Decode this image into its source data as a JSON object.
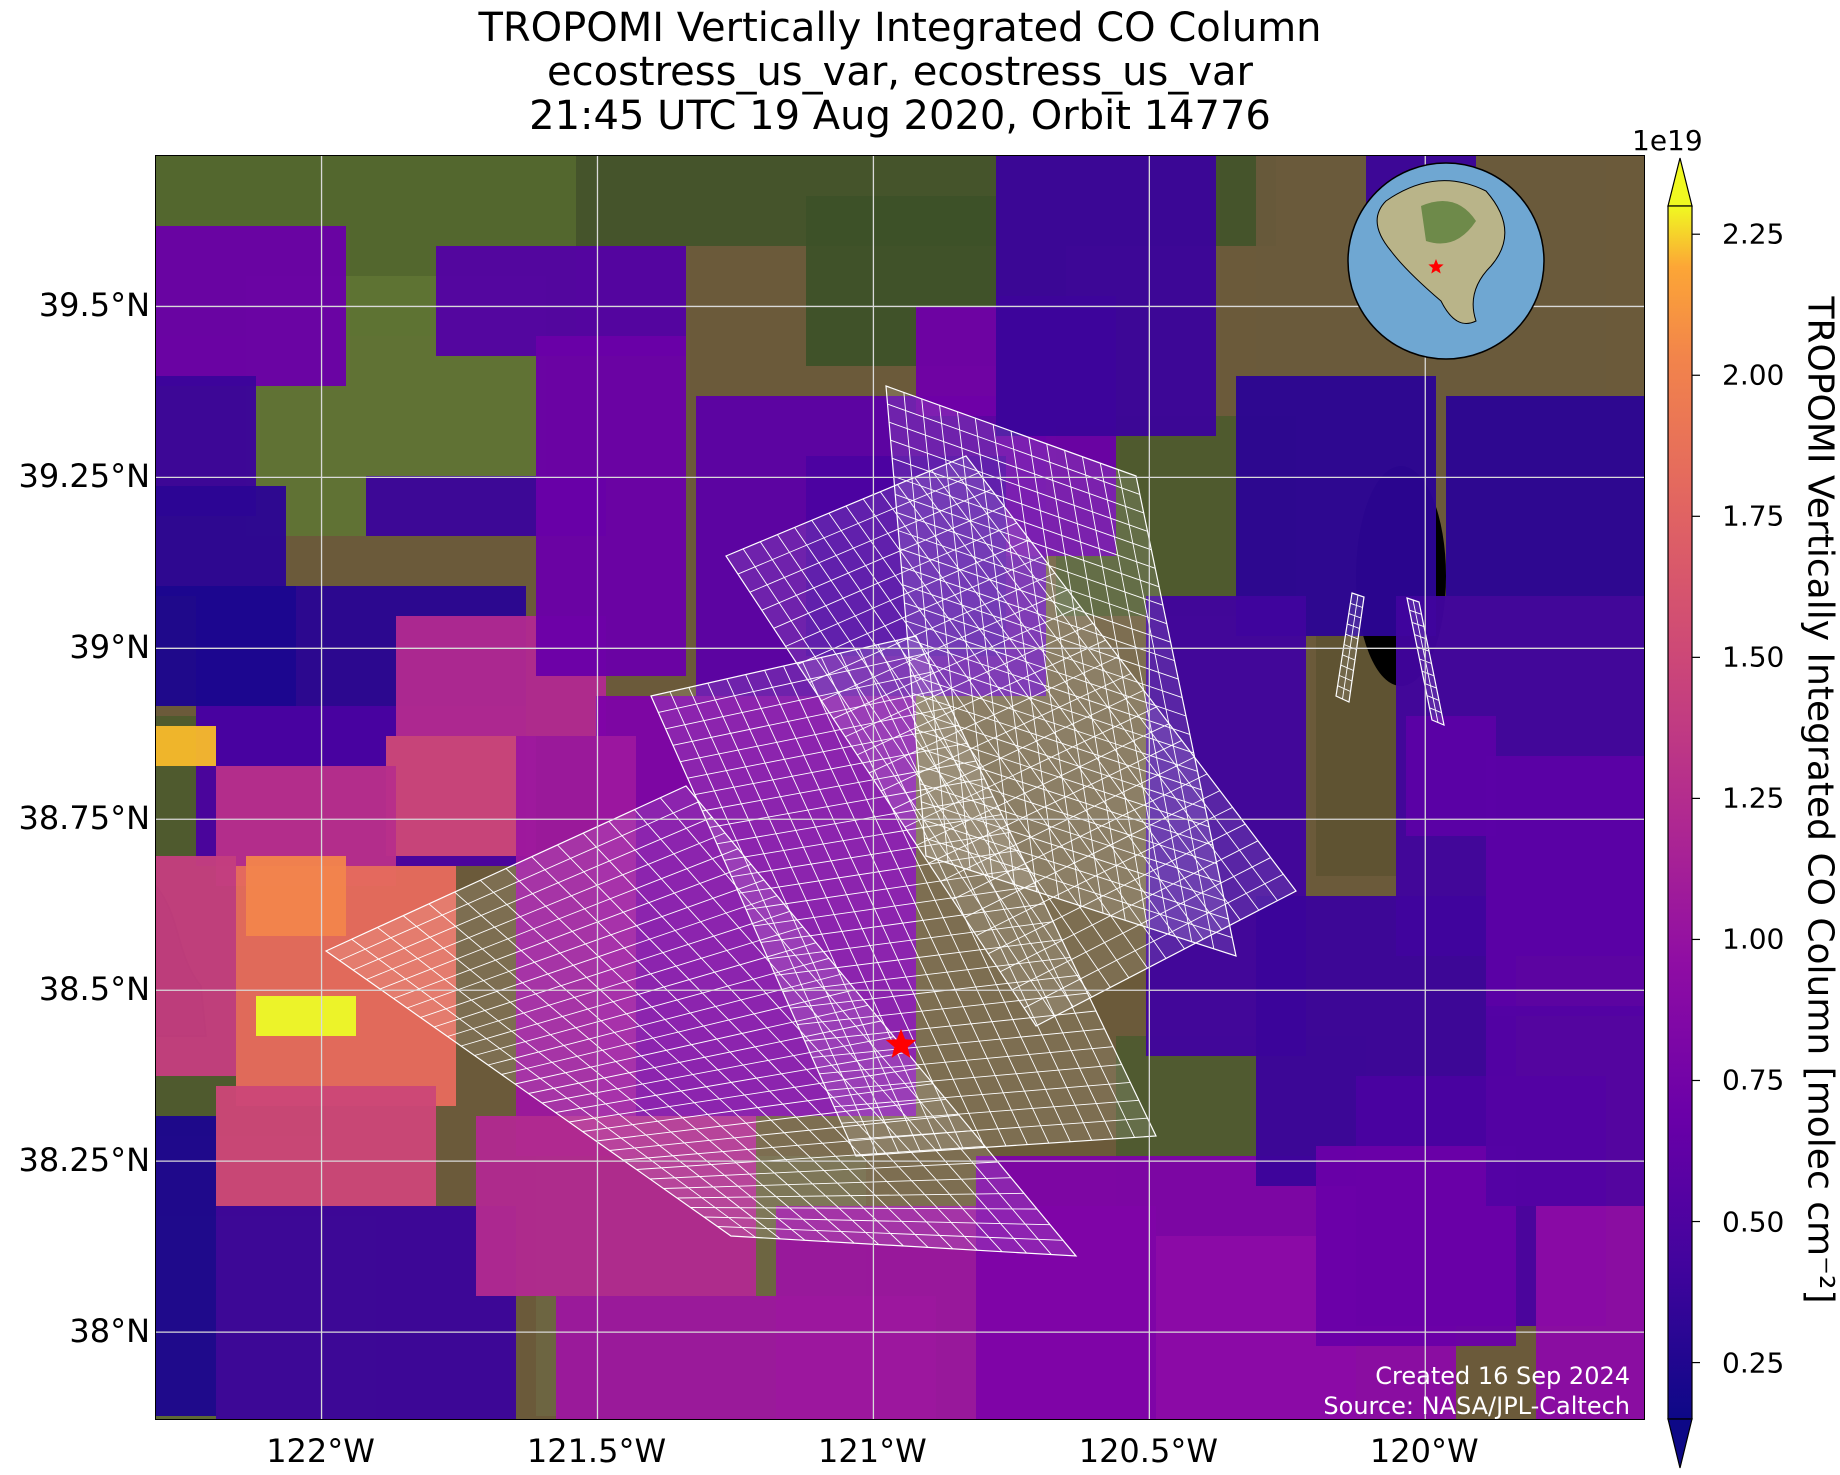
{
  "title": {
    "line1": "TROPOMI Vertically Integrated CO Column",
    "line2": "ecostress_us_var, ecostress_us_var",
    "line3": "21:45 UTC 19 Aug 2020, Orbit 14776"
  },
  "map": {
    "lon_range": [
      -122.3,
      -119.6
    ],
    "lat_range": [
      37.87,
      39.72
    ],
    "lat_ticks": [
      {
        "value": 39.5,
        "label": "39.5°N"
      },
      {
        "value": 39.25,
        "label": "39.25°N"
      },
      {
        "value": 39.0,
        "label": "39°N"
      },
      {
        "value": 38.75,
        "label": "38.75°N"
      },
      {
        "value": 38.5,
        "label": "38.5°N"
      },
      {
        "value": 38.25,
        "label": "38.25°N"
      },
      {
        "value": 38.0,
        "label": "38°N"
      }
    ],
    "lon_ticks": [
      {
        "value": -122.0,
        "label": "122°W"
      },
      {
        "value": -121.5,
        "label": "121.5°W"
      },
      {
        "value": -121.0,
        "label": "121°W"
      },
      {
        "value": -120.5,
        "label": "120.5°W"
      },
      {
        "value": -120.0,
        "label": "120°W"
      }
    ],
    "marker": {
      "lon": -120.95,
      "lat": 38.42,
      "symbol": "star",
      "color": "#ff0000"
    },
    "grid": true,
    "inset_globe": {
      "position": "top-right",
      "marker": "star"
    }
  },
  "colorbar": {
    "label": "TROPOMI Vertically Integrated CO Column [molec cm⁻²]",
    "exponent": "1e19",
    "range": [
      0.15,
      2.3
    ],
    "colormap": "plasma",
    "ticks": [
      "0.25",
      "0.50",
      "0.75",
      "1.00",
      "1.25",
      "1.50",
      "1.75",
      "2.00",
      "2.25"
    ],
    "extend": "both"
  },
  "credits": {
    "created": "Created 16 Sep 2024",
    "source": "Source: NASA/JPL-Caltech"
  }
}
